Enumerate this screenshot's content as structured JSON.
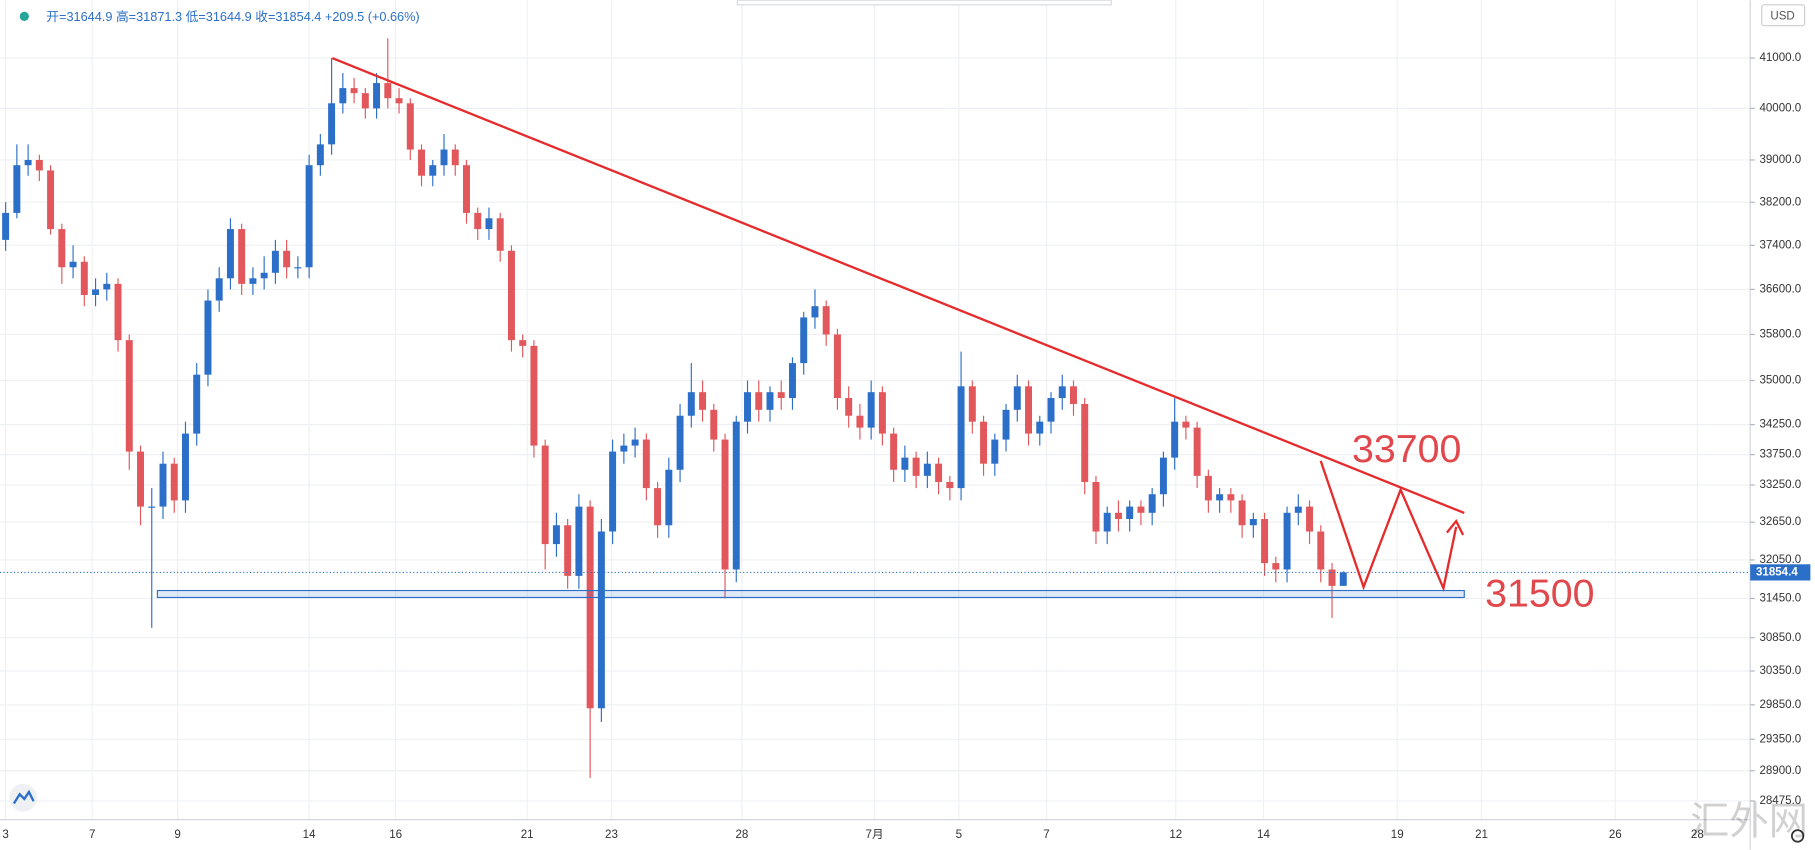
{
  "chart_data": {
    "type": "candlestick",
    "header": "开=31644.9 高=31871.3 低=31644.9 收=31854.4 +209.5 (+0.66%)",
    "currency": "USD",
    "watermark": "汇外网",
    "annotations": [
      33700,
      31500
    ],
    "log": true,
    "grid": true,
    "up_color": "#2c6fc8",
    "down_color": "#e2575b",
    "ylim": [
      28214,
      42181
    ],
    "yticks": [
      {
        "value": 41000,
        "label": "41000.0"
      },
      {
        "value": 40000,
        "label": "40000.0"
      },
      {
        "value": 39000,
        "label": "39000.0"
      },
      {
        "value": 38200,
        "label": "38200.0"
      },
      {
        "value": 37400,
        "label": "37400.0"
      },
      {
        "value": 36600,
        "label": "36600.0"
      },
      {
        "value": 35800,
        "label": "35800.0"
      },
      {
        "value": 35000,
        "label": "35000.0"
      },
      {
        "value": 34250,
        "label": "34250.0"
      },
      {
        "value": 33750,
        "label": "33750.0"
      },
      {
        "value": 33250,
        "label": "33250.0"
      },
      {
        "value": 32650,
        "label": "32650.0"
      },
      {
        "value": 32050,
        "label": "32050.0"
      },
      {
        "value": 31450,
        "label": "31450.0"
      },
      {
        "value": 30850,
        "label": "30850.0"
      },
      {
        "value": 30350,
        "label": "30350.0"
      },
      {
        "value": 29850,
        "label": "29850.0"
      },
      {
        "value": 29350,
        "label": "29350.0"
      },
      {
        "value": 28900,
        "label": "28900.0"
      },
      {
        "value": 28475,
        "label": "28475.0"
      }
    ],
    "xlim": [
      -0.5,
      155.2
    ],
    "xticks": [
      {
        "value": 0,
        "label": "3"
      },
      {
        "value": 7.7,
        "label": "7"
      },
      {
        "value": 15.3,
        "label": "9"
      },
      {
        "value": 27,
        "label": "14"
      },
      {
        "value": 34.7,
        "label": "16"
      },
      {
        "value": 46.4,
        "label": "21"
      },
      {
        "value": 53.9,
        "label": "23"
      },
      {
        "value": 65.5,
        "label": "28"
      },
      {
        "value": 77.3,
        "label": "7月"
      },
      {
        "value": 84.8,
        "label": "5"
      },
      {
        "value": 92.6,
        "label": "7"
      },
      {
        "value": 104.1,
        "label": "12"
      },
      {
        "value": 111.9,
        "label": "14"
      },
      {
        "value": 123.8,
        "label": "19"
      },
      {
        "value": 131.3,
        "label": "21"
      },
      {
        "value": 143.2,
        "label": "26"
      },
      {
        "value": 150.5,
        "label": "28"
      }
    ],
    "open": [
      37500,
      38000,
      38900,
      39000,
      38800,
      37700,
      37000,
      37100,
      36500,
      36600,
      36700,
      35700,
      33800,
      32900,
      32900,
      33600,
      33000,
      34100,
      35100,
      36400,
      36800,
      37700,
      36700,
      36800,
      36900,
      37300,
      37000,
      37000,
      38900,
      39300,
      40100,
      40400,
      40300,
      40000,
      40500,
      40200,
      40100,
      39200,
      38700,
      38900,
      39200,
      38900,
      38000,
      37700,
      37900,
      37300,
      35700,
      35600,
      33900,
      32300,
      32600,
      31800,
      32900,
      29800,
      32500,
      33800,
      33900,
      34000,
      33200,
      32600,
      33500,
      34400,
      34800,
      34500,
      34000,
      31900,
      34300,
      34800,
      34500,
      34800,
      34700,
      35300,
      36100,
      36300,
      35800,
      34700,
      34400,
      34200,
      34800,
      34100,
      33500,
      33700,
      33400,
      33600,
      33300,
      33200,
      34900,
      34300,
      33600,
      34000,
      34500,
      34900,
      34100,
      34300,
      34700,
      34900,
      34600,
      33300,
      32500,
      32800,
      32700,
      32900,
      32800,
      33100,
      33700,
      34300,
      34200,
      33400,
      33000,
      33100,
      33000,
      32600,
      32700,
      32000,
      31900,
      32800,
      32900,
      32500,
      31900,
      31644.9
    ],
    "high": [
      38200,
      39300,
      39300,
      39100,
      38900,
      37800,
      37400,
      37200,
      36800,
      36900,
      36800,
      35800,
      33900,
      33200,
      33800,
      33700,
      34300,
      35300,
      36600,
      37000,
      37900,
      37800,
      37000,
      37200,
      37500,
      37500,
      37200,
      39100,
      39500,
      41000,
      40700,
      40600,
      40400,
      40700,
      41400,
      40400,
      40200,
      39300,
      39000,
      39500,
      39300,
      39000,
      38100,
      38100,
      38000,
      37400,
      35800,
      35700,
      34000,
      32800,
      32700,
      33100,
      33000,
      32700,
      34000,
      34100,
      34200,
      34100,
      33300,
      33700,
      34600,
      35300,
      35000,
      34600,
      34100,
      34400,
      35000,
      35000,
      34900,
      35000,
      35400,
      36200,
      36600,
      36400,
      35900,
      34900,
      34600,
      35000,
      34900,
      34200,
      33900,
      33800,
      33800,
      33700,
      33400,
      35500,
      35000,
      34400,
      34100,
      34600,
      35100,
      35000,
      34400,
      34800,
      35100,
      35000,
      34700,
      33400,
      32900,
      33000,
      33000,
      33000,
      33200,
      33800,
      34700,
      34400,
      34300,
      33500,
      33200,
      33200,
      33100,
      32800,
      32800,
      32100,
      32900,
      33100,
      33000,
      32600,
      32000,
      31871.3
    ],
    "low": [
      37300,
      37900,
      38700,
      38600,
      37600,
      36700,
      36800,
      36300,
      36300,
      36400,
      35500,
      33500,
      32600,
      31000,
      32700,
      32800,
      32800,
      33900,
      34900,
      36200,
      36600,
      36500,
      36500,
      36600,
      36700,
      36800,
      36800,
      36800,
      38700,
      39100,
      39900,
      40100,
      39800,
      39800,
      40000,
      39900,
      39000,
      38500,
      38500,
      38700,
      38700,
      37800,
      37500,
      37500,
      37100,
      35500,
      35400,
      33700,
      31900,
      32100,
      31600,
      31600,
      28800,
      29600,
      32300,
      33600,
      33700,
      33000,
      32400,
      32400,
      33300,
      34200,
      34300,
      33800,
      31450,
      31700,
      34100,
      34300,
      34300,
      34500,
      34500,
      35100,
      35900,
      35600,
      34500,
      34200,
      34000,
      34000,
      33900,
      33300,
      33300,
      33200,
      33200,
      33100,
      33000,
      33000,
      34100,
      33400,
      33400,
      33800,
      34300,
      33900,
      33900,
      34100,
      34500,
      34400,
      33100,
      32300,
      32300,
      32500,
      32500,
      32600,
      32600,
      32900,
      33500,
      34000,
      33200,
      32800,
      32800,
      32800,
      32400,
      32400,
      31800,
      31700,
      31700,
      32600,
      32300,
      31700,
      31150,
      31644.9
    ],
    "close": [
      38000,
      38900,
      39000,
      38800,
      37700,
      37000,
      37100,
      36500,
      36600,
      36700,
      35700,
      33800,
      32900,
      32900,
      33600,
      33000,
      34100,
      35100,
      36400,
      36800,
      37700,
      36700,
      36800,
      36900,
      37300,
      37000,
      37000,
      38900,
      39300,
      40100,
      40400,
      40300,
      40000,
      40500,
      40200,
      40100,
      39200,
      38700,
      38900,
      39200,
      38900,
      38000,
      37700,
      37900,
      37300,
      35700,
      35600,
      33900,
      32300,
      32600,
      31800,
      32900,
      29800,
      32500,
      33800,
      33900,
      34000,
      33200,
      32600,
      33500,
      34400,
      34800,
      34500,
      34000,
      31900,
      34300,
      34800,
      34500,
      34800,
      34700,
      35300,
      36100,
      36300,
      35800,
      34700,
      34400,
      34200,
      34800,
      34100,
      33500,
      33700,
      33400,
      33600,
      33300,
      33200,
      34900,
      34300,
      33600,
      34000,
      34500,
      34900,
      34100,
      34300,
      34700,
      34900,
      34600,
      33300,
      32500,
      32800,
      32700,
      32900,
      32800,
      33100,
      33700,
      34300,
      34200,
      33400,
      33000,
      33100,
      33000,
      32600,
      32700,
      32000,
      31900,
      32800,
      32900,
      32500,
      31900,
      31644.9,
      31854.4
    ]
  }
}
